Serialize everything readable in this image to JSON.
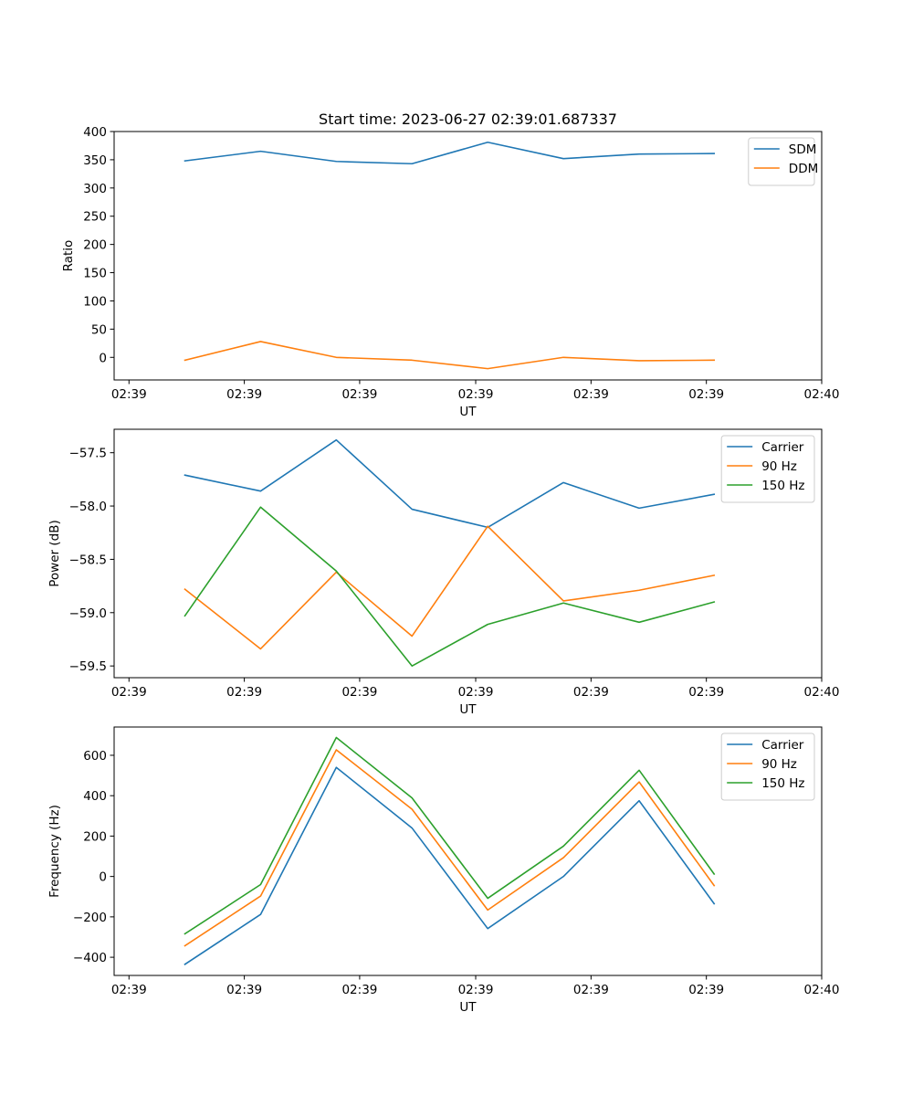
{
  "figure": {
    "title": "Start time: 2023-06-27 02:39:01.687337"
  },
  "chart_data": [
    {
      "type": "line",
      "title": "Start time: 2023-06-27 02:39:01.687337",
      "xlabel": "UT",
      "ylabel": "Ratio",
      "xlim": [
        0,
        1
      ],
      "x": [
        0.1,
        0.207,
        0.314,
        0.421,
        0.528,
        0.635,
        0.742,
        0.848
      ],
      "xticks": [
        0.021,
        0.184,
        0.347,
        0.511,
        0.674,
        0.837,
        1.0
      ],
      "xticklabels": [
        "02:39",
        "02:39",
        "02:39",
        "02:39",
        "02:39",
        "02:39",
        "02:40"
      ],
      "ylim": [
        -40,
        400
      ],
      "yticks": [
        0,
        50,
        100,
        150,
        200,
        250,
        300,
        350,
        400
      ],
      "yticklabels": [
        "0",
        "50",
        "100",
        "150",
        "200",
        "250",
        "300",
        "350",
        "400"
      ],
      "legend": "upper right",
      "grid": false,
      "series": [
        {
          "name": "SDM",
          "color": "#1f77b4",
          "values": [
            348,
            365,
            347,
            343,
            381,
            352,
            360,
            361
          ]
        },
        {
          "name": "DDM",
          "color": "#ff7f0e",
          "values": [
            -5,
            28,
            0,
            -5,
            -20,
            0,
            -6,
            -5
          ]
        }
      ]
    },
    {
      "type": "line",
      "title": "",
      "xlabel": "UT",
      "ylabel": "Power (dB)",
      "xlim": [
        0,
        1
      ],
      "x": [
        0.1,
        0.207,
        0.314,
        0.421,
        0.528,
        0.635,
        0.742,
        0.848
      ],
      "xticks": [
        0.021,
        0.184,
        0.347,
        0.511,
        0.674,
        0.837,
        1.0
      ],
      "xticklabels": [
        "02:39",
        "02:39",
        "02:39",
        "02:39",
        "02:39",
        "02:39",
        "02:40"
      ],
      "ylim": [
        -59.61,
        -57.28
      ],
      "yticks": [
        -59.5,
        -59.0,
        -58.5,
        -58.0,
        -57.5
      ],
      "yticklabels": [
        "−59.5",
        "−59.0",
        "−58.5",
        "−58.0",
        "−57.5"
      ],
      "legend": "upper right",
      "grid": false,
      "series": [
        {
          "name": "Carrier",
          "color": "#1f77b4",
          "values": [
            -57.71,
            -57.86,
            -57.38,
            -58.03,
            -58.2,
            -57.78,
            -58.02,
            -57.89
          ]
        },
        {
          "name": "90 Hz",
          "color": "#ff7f0e",
          "values": [
            -58.78,
            -59.34,
            -58.62,
            -59.22,
            -58.19,
            -58.89,
            -58.79,
            -58.65
          ]
        },
        {
          "name": "150 Hz",
          "color": "#2ca02c",
          "values": [
            -59.03,
            -58.01,
            -58.61,
            -59.5,
            -59.11,
            -58.91,
            -59.09,
            -58.9
          ]
        }
      ]
    },
    {
      "type": "line",
      "title": "",
      "xlabel": "UT",
      "ylabel": "Frequency (Hz)",
      "xlim": [
        0,
        1
      ],
      "x": [
        0.1,
        0.207,
        0.314,
        0.421,
        0.528,
        0.635,
        0.742,
        0.848
      ],
      "xticks": [
        0.021,
        0.184,
        0.347,
        0.511,
        0.674,
        0.837,
        1.0
      ],
      "xticklabels": [
        "02:39",
        "02:39",
        "02:39",
        "02:39",
        "02:39",
        "02:39",
        "02:40"
      ],
      "ylim": [
        -490,
        740
      ],
      "yticks": [
        -400,
        -200,
        0,
        200,
        400,
        600
      ],
      "yticklabels": [
        "−400",
        "−200",
        "0",
        "200",
        "400",
        "600"
      ],
      "legend": "upper right",
      "grid": false,
      "series": [
        {
          "name": "Carrier",
          "color": "#1f77b4",
          "values": [
            -435,
            -188,
            540,
            240,
            -258,
            0,
            375,
            -135
          ]
        },
        {
          "name": "90 Hz",
          "color": "#ff7f0e",
          "values": [
            -343,
            -97,
            627,
            333,
            -166,
            93,
            468,
            -45
          ]
        },
        {
          "name": "150 Hz",
          "color": "#2ca02c",
          "values": [
            -284,
            -40,
            688,
            389,
            -108,
            150,
            526,
            12
          ]
        }
      ]
    }
  ]
}
